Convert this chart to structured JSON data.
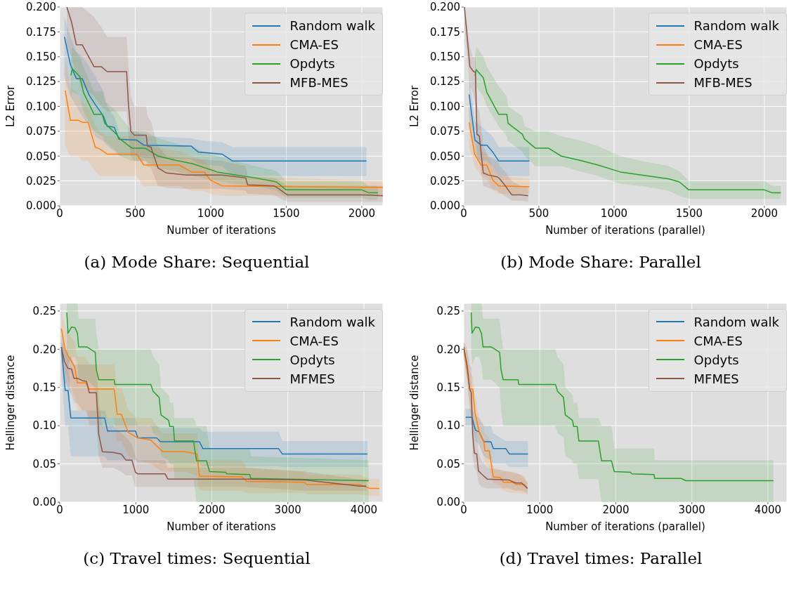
{
  "chart_data": [
    {
      "type": "line",
      "title": "(a) Mode Share: Sequential",
      "xlabel": "Number of iterations",
      "ylabel": "L2 Error",
      "grid": true,
      "legend": "top right",
      "xlim": [
        0,
        2140
      ],
      "xticks": [
        0,
        500,
        1000,
        1500,
        2000
      ],
      "ylim": [
        0,
        0.2
      ],
      "yticks": [
        {
          "value": 0,
          "label": "0.000"
        },
        {
          "value": 0.025,
          "label": "0.025"
        },
        {
          "value": 0.05,
          "label": "0.050"
        },
        {
          "value": 0.075,
          "label": "0.075"
        },
        {
          "value": 0.1,
          "label": "0.100"
        },
        {
          "value": 0.125,
          "label": "0.125"
        },
        {
          "value": 0.15,
          "label": "0.150"
        },
        {
          "value": 0.175,
          "label": "0.175"
        },
        {
          "value": 0.2,
          "label": "0.200"
        }
      ],
      "series": [
        {
          "name": "Random walk",
          "color": "#1f77b4",
          "x": [
            31,
            71,
            110,
            149,
            196,
            235,
            290,
            314,
            361,
            392,
            510,
            557,
            871,
            918,
            1075,
            1145,
            2031
          ],
          "values": [
            0.17,
            0.142,
            0.128,
            0.128,
            0.111,
            0.102,
            0.09,
            0.08,
            0.079,
            0.067,
            0.066,
            0.061,
            0.06,
            0.054,
            0.052,
            0.045,
            0.045
          ],
          "lower": [
            0.13,
            0.11,
            0.1,
            0.09,
            0.08,
            0.07,
            0.065,
            0.06,
            0.055,
            0.05,
            0.05,
            0.048,
            0.047,
            0.042,
            0.04,
            0.03,
            0.03
          ],
          "upper": [
            0.19,
            0.17,
            0.155,
            0.15,
            0.14,
            0.13,
            0.115,
            0.1,
            0.09,
            0.075,
            0.075,
            0.07,
            0.068,
            0.066,
            0.064,
            0.059,
            0.059
          ]
        },
        {
          "name": "CMA-ES",
          "color": "#ff7f0e",
          "x": [
            36,
            71,
            125,
            149,
            188,
            235,
            267,
            314,
            510,
            557,
            792,
            871,
            957,
            996,
            1075,
            2140
          ],
          "values": [
            0.116,
            0.086,
            0.086,
            0.084,
            0.084,
            0.059,
            0.057,
            0.052,
            0.052,
            0.041,
            0.041,
            0.034,
            0.034,
            0.026,
            0.02,
            0.0185
          ],
          "lower": [
            0.06,
            0.05,
            0.05,
            0.045,
            0.045,
            0.035,
            0.03,
            0.03,
            0.03,
            0.02,
            0.02,
            0.015,
            0.015,
            0.012,
            0.01,
            0.01
          ],
          "upper": [
            0.15,
            0.12,
            0.11,
            0.105,
            0.1,
            0.08,
            0.075,
            0.07,
            0.07,
            0.06,
            0.055,
            0.05,
            0.045,
            0.04,
            0.03,
            0.025
          ]
        },
        {
          "name": "Opdyts",
          "color": "#2ca02c",
          "x": [
            74,
            83,
            133,
            157,
            227,
            282,
            298,
            376,
            400,
            478,
            565,
            651,
            761,
            886,
            1043,
            1169,
            1294,
            1435,
            1498,
            2000,
            2047,
            2107
          ],
          "values": [
            0.131,
            0.138,
            0.13,
            0.114,
            0.092,
            0.092,
            0.083,
            0.072,
            0.067,
            0.058,
            0.058,
            0.05,
            0.046,
            0.042,
            0.034,
            0.031,
            0.028,
            0.024,
            0.016,
            0.016,
            0.013,
            0.013
          ],
          "lower": [
            0.11,
            0.115,
            0.11,
            0.095,
            0.075,
            0.07,
            0.065,
            0.055,
            0.05,
            0.045,
            0.045,
            0.038,
            0.035,
            0.03,
            0.025,
            0.022,
            0.02,
            0.015,
            0.008,
            0.008,
            0.006,
            0.006
          ],
          "upper": [
            0.15,
            0.16,
            0.15,
            0.14,
            0.115,
            0.115,
            0.105,
            0.095,
            0.09,
            0.075,
            0.075,
            0.068,
            0.063,
            0.058,
            0.05,
            0.045,
            0.04,
            0.035,
            0.025,
            0.025,
            0.02,
            0.02
          ]
        },
        {
          "name": "MFB-MES",
          "color": "#8c564b",
          "x": [
            47,
            78,
            110,
            149,
            227,
            275,
            314,
            443,
            455,
            471,
            494,
            573,
            580,
            604,
            651,
            706,
            839,
            1075,
            1231,
            1244,
            1420,
            1451,
            1506,
            2016,
            2140
          ],
          "values": [
            0.2,
            0.185,
            0.162,
            0.162,
            0.14,
            0.14,
            0.135,
            0.135,
            0.102,
            0.075,
            0.071,
            0.071,
            0.06,
            0.059,
            0.038,
            0.033,
            0.031,
            0.031,
            0.028,
            0.021,
            0.02,
            0.017,
            0.011,
            0.011,
            0.01
          ],
          "lower": [
            0.16,
            0.15,
            0.13,
            0.12,
            0.11,
            0.1,
            0.095,
            0.095,
            0.07,
            0.05,
            0.045,
            0.045,
            0.04,
            0.038,
            0.02,
            0.018,
            0.017,
            0.017,
            0.015,
            0.012,
            0.011,
            0.008,
            0.004,
            0.004,
            0.004
          ],
          "upper": [
            0.2,
            0.2,
            0.2,
            0.2,
            0.19,
            0.18,
            0.17,
            0.17,
            0.14,
            0.11,
            0.1,
            0.1,
            0.09,
            0.085,
            0.06,
            0.05,
            0.048,
            0.045,
            0.04,
            0.03,
            0.028,
            0.026,
            0.02,
            0.02,
            0.02
          ]
        }
      ]
    },
    {
      "type": "line",
      "title": "(b) Mode Share: Parallel",
      "xlabel": "Number of iterations (parallel)",
      "ylabel": "L2 Error",
      "grid": true,
      "legend": "top right",
      "xlim": [
        0,
        2150
      ],
      "xticks": [
        0,
        500,
        1000,
        1500,
        2000
      ],
      "ylim": [
        0,
        0.2
      ],
      "yticks": [
        {
          "value": 0,
          "label": "0.000"
        },
        {
          "value": 0.025,
          "label": "0.025"
        },
        {
          "value": 0.05,
          "label": "0.050"
        },
        {
          "value": 0.075,
          "label": "0.075"
        },
        {
          "value": 0.1,
          "label": "0.100"
        },
        {
          "value": 0.125,
          "label": "0.125"
        },
        {
          "value": 0.15,
          "label": "0.150"
        },
        {
          "value": 0.175,
          "label": "0.175"
        },
        {
          "value": 0.2,
          "label": "0.200"
        }
      ],
      "series": [
        {
          "name": "Random walk",
          "color": "#1f77b4",
          "x": [
            36,
            75,
            115,
            154,
            193,
            233,
            437
          ],
          "values": [
            0.112,
            0.066,
            0.061,
            0.061,
            0.054,
            0.045,
            0.045
          ],
          "lower": [
            0.09,
            0.05,
            0.045,
            0.045,
            0.04,
            0.03,
            0.03
          ],
          "upper": [
            0.13,
            0.085,
            0.08,
            0.075,
            0.07,
            0.059,
            0.059
          ]
        },
        {
          "name": "CMA-ES",
          "color": "#ff7f0e",
          "x": [
            36,
            72,
            115,
            154,
            193,
            233,
            437
          ],
          "values": [
            0.084,
            0.052,
            0.041,
            0.041,
            0.026,
            0.02,
            0.019
          ],
          "lower": [
            0.06,
            0.04,
            0.03,
            0.028,
            0.016,
            0.012,
            0.012
          ],
          "upper": [
            0.1,
            0.07,
            0.055,
            0.052,
            0.04,
            0.03,
            0.027
          ]
        },
        {
          "name": "Opdyts",
          "color": "#2ca02c",
          "x": [
            75,
            83,
            130,
            154,
            233,
            287,
            295,
            390,
            405,
            476,
            563,
            649,
            767,
            893,
            1042,
            1183,
            1364,
            1434,
            1497,
            2000,
            2052,
            2110
          ],
          "values": [
            0.131,
            0.137,
            0.129,
            0.114,
            0.092,
            0.092,
            0.083,
            0.072,
            0.067,
            0.058,
            0.058,
            0.05,
            0.046,
            0.041,
            0.034,
            0.031,
            0.027,
            0.024,
            0.016,
            0.016,
            0.013,
            0.013
          ],
          "lower": [
            0.115,
            0.12,
            0.11,
            0.1,
            0.08,
            0.07,
            0.065,
            0.055,
            0.05,
            0.04,
            0.04,
            0.04,
            0.035,
            0.03,
            0.022,
            0.02,
            0.015,
            0.01,
            0.007,
            0.007,
            0.007,
            0.007
          ],
          "upper": [
            0.15,
            0.16,
            0.15,
            0.14,
            0.12,
            0.11,
            0.1,
            0.09,
            0.08,
            0.075,
            0.075,
            0.07,
            0.066,
            0.06,
            0.05,
            0.045,
            0.04,
            0.035,
            0.025,
            0.025,
            0.02,
            0.02
          ]
        },
        {
          "name": "MFB-MES",
          "color": "#8c564b",
          "x": [
            5,
            41,
            60,
            78,
            88,
            104,
            130,
            162,
            225,
            240,
            272,
            319,
            382,
            429
          ],
          "values": [
            0.2,
            0.14,
            0.136,
            0.134,
            0.072,
            0.07,
            0.033,
            0.031,
            0.029,
            0.027,
            0.021,
            0.011,
            0.011,
            0.01
          ],
          "lower": [
            0.18,
            0.12,
            0.115,
            0.1,
            0.05,
            0.045,
            0.02,
            0.018,
            0.015,
            0.013,
            0.01,
            0.005,
            0.005,
            0.004
          ],
          "upper": [
            0.2,
            0.16,
            0.15,
            0.15,
            0.1,
            0.095,
            0.06,
            0.05,
            0.045,
            0.04,
            0.035,
            0.025,
            0.02,
            0.02
          ]
        }
      ]
    },
    {
      "type": "line",
      "title": "(c) Travel times: Sequential",
      "xlabel": "Number of iterations",
      "ylabel": "Hellinger distance",
      "grid": true,
      "legend": "top right",
      "xlim": [
        0,
        4250
      ],
      "xticks": [
        0,
        1000,
        2000,
        3000,
        4000
      ],
      "ylim": [
        0,
        0.26
      ],
      "yticks": [
        {
          "value": 0,
          "label": "0.00"
        },
        {
          "value": 0.05,
          "label": "0.05"
        },
        {
          "value": 0.1,
          "label": "0.10"
        },
        {
          "value": 0.15,
          "label": "0.15"
        },
        {
          "value": 0.2,
          "label": "0.20"
        },
        {
          "value": 0.25,
          "label": "0.25"
        }
      ],
      "series": [
        {
          "name": "Random walk",
          "color": "#1f77b4",
          "x": [
            22,
            72,
            109,
            146,
            591,
            629,
            996,
            1027,
            1276,
            1323,
            1837,
            1883,
            2879,
            2926,
            4047
          ],
          "values": [
            0.203,
            0.146,
            0.146,
            0.11,
            0.11,
            0.093,
            0.093,
            0.084,
            0.084,
            0.079,
            0.079,
            0.07,
            0.07,
            0.063,
            0.063
          ],
          "lower": [
            0.17,
            0.1,
            0.1,
            0.06,
            0.06,
            0.055,
            0.055,
            0.052,
            0.052,
            0.05,
            0.05,
            0.047,
            0.047,
            0.046,
            0.046
          ],
          "upper": [
            0.22,
            0.2,
            0.2,
            0.12,
            0.12,
            0.11,
            0.11,
            0.1,
            0.1,
            0.097,
            0.097,
            0.092,
            0.092,
            0.08,
            0.08
          ]
        },
        {
          "name": "CMA-ES",
          "color": "#ff7f0e",
          "x": [
            22,
            72,
            109,
            196,
            233,
            342,
            389,
            716,
            756,
            809,
            903,
            1027,
            1198,
            1354,
            1650,
            1806,
            1837,
            2397,
            2459,
            3222,
            3247,
            3938,
            4078,
            4202
          ],
          "values": [
            0.227,
            0.199,
            0.192,
            0.177,
            0.156,
            0.156,
            0.148,
            0.148,
            0.115,
            0.115,
            0.091,
            0.084,
            0.081,
            0.066,
            0.066,
            0.063,
            0.034,
            0.033,
            0.027,
            0.026,
            0.023,
            0.023,
            0.018,
            0.018
          ],
          "lower": [
            0.2,
            0.17,
            0.16,
            0.14,
            0.12,
            0.12,
            0.11,
            0.11,
            0.08,
            0.08,
            0.06,
            0.055,
            0.05,
            0.04,
            0.04,
            0.035,
            0.015,
            0.015,
            0.012,
            0.012,
            0.01,
            0.01,
            0.008,
            0.008
          ],
          "upper": [
            0.25,
            0.23,
            0.22,
            0.21,
            0.19,
            0.19,
            0.18,
            0.18,
            0.15,
            0.15,
            0.12,
            0.11,
            0.11,
            0.09,
            0.09,
            0.09,
            0.055,
            0.055,
            0.045,
            0.04,
            0.036,
            0.036,
            0.03,
            0.03
          ]
        },
        {
          "name": "Opdyts",
          "color": "#2ca02c",
          "x": [
            93,
            109,
            156,
            202,
            233,
            249,
            358,
            467,
            482,
            514,
            716,
            725,
            1198,
            1229,
            1307,
            1332,
            1432,
            1447,
            1494,
            1510,
            1759,
            1799,
            1930,
            1971,
            2179,
            2201,
            2500,
            2512,
            4062
          ],
          "values": [
            0.248,
            0.221,
            0.229,
            0.228,
            0.221,
            0.203,
            0.203,
            0.196,
            0.173,
            0.16,
            0.16,
            0.154,
            0.154,
            0.145,
            0.137,
            0.114,
            0.107,
            0.099,
            0.099,
            0.08,
            0.08,
            0.054,
            0.054,
            0.04,
            0.039,
            0.037,
            0.036,
            0.031,
            0.028
          ],
          "lower": [
            0.2,
            0.18,
            0.19,
            0.19,
            0.18,
            0.16,
            0.16,
            0.15,
            0.12,
            0.1,
            0.1,
            0.1,
            0.1,
            0.09,
            0.085,
            0.06,
            0.055,
            0.05,
            0.05,
            0.03,
            0.03,
            0,
            0,
            0,
            0,
            0,
            0,
            0,
            0
          ],
          "upper": [
            0.26,
            0.26,
            0.26,
            0.26,
            0.26,
            0.24,
            0.24,
            0.24,
            0.22,
            0.2,
            0.2,
            0.2,
            0.2,
            0.19,
            0.18,
            0.15,
            0.14,
            0.13,
            0.13,
            0.11,
            0.11,
            0.1,
            0.1,
            0.07,
            0.07,
            0.07,
            0.07,
            0.06,
            0.055
          ]
        },
        {
          "name": "MFMES",
          "color": "#8c564b",
          "x": [
            22,
            62,
            109,
            156,
            187,
            233,
            296,
            352,
            389,
            482,
            514,
            560,
            700,
            809,
            871,
            949,
            996,
            1027,
            1385,
            1423,
            2444,
            3222,
            3938,
            4031
          ],
          "values": [
            0.203,
            0.184,
            0.175,
            0.174,
            0.162,
            0.162,
            0.159,
            0.158,
            0.143,
            0.143,
            0.088,
            0.066,
            0.065,
            0.063,
            0.055,
            0.055,
            0.039,
            0.037,
            0.037,
            0.03,
            0.03,
            0.029,
            0.021,
            0.021
          ],
          "lower": [
            0.19,
            0.16,
            0.15,
            0.14,
            0.13,
            0.13,
            0.12,
            0.12,
            0.1,
            0.1,
            0.06,
            0.045,
            0.045,
            0.04,
            0.035,
            0.035,
            0.02,
            0.02,
            0.02,
            0.02,
            0.02,
            0.015,
            0.015,
            0.015
          ],
          "upper": [
            0.21,
            0.2,
            0.19,
            0.19,
            0.18,
            0.18,
            0.18,
            0.18,
            0.18,
            0.18,
            0.13,
            0.1,
            0.1,
            0.09,
            0.085,
            0.075,
            0.06,
            0.055,
            0.055,
            0.045,
            0.045,
            0.04,
            0.03,
            0.03
          ]
        }
      ]
    },
    {
      "type": "line",
      "title": "(d) Travel times: Parallel",
      "xlabel": "Number of iterations (parallel)",
      "ylabel": "Hellinger distance",
      "grid": true,
      "legend": "top right",
      "xlim": [
        0,
        4250
      ],
      "xticks": [
        0,
        1000,
        2000,
        3000,
        4000
      ],
      "ylim": [
        0,
        0.26
      ],
      "yticks": [
        {
          "value": 0,
          "label": "0.00"
        },
        {
          "value": 0.05,
          "label": "0.05"
        },
        {
          "value": 0.1,
          "label": "0.10"
        },
        {
          "value": 0.15,
          "label": "0.15"
        },
        {
          "value": 0.2,
          "label": "0.20"
        },
        {
          "value": 0.25,
          "label": "0.25"
        }
      ],
      "series": [
        {
          "name": "Random walk",
          "color": "#1f77b4",
          "x": [
            25,
            109,
            155,
            202,
            264,
            357,
            389,
            553,
            600,
            845
          ],
          "values": [
            0.111,
            0.111,
            0.094,
            0.092,
            0.079,
            0.079,
            0.07,
            0.07,
            0.063,
            0.063
          ],
          "lower": [
            0.1,
            0.1,
            0.08,
            0.075,
            0.06,
            0.055,
            0.05,
            0.05,
            0.046,
            0.046
          ],
          "upper": [
            0.122,
            0.122,
            0.113,
            0.11,
            0.1,
            0.1,
            0.09,
            0.08,
            0.08,
            0.08
          ]
        },
        {
          "name": "CMA-ES",
          "color": "#ff7f0e",
          "x": [
            0,
            37,
            78,
            118,
            149,
            202,
            264,
            280,
            336,
            389,
            482,
            522,
            637,
            690,
            793,
            839
          ],
          "values": [
            0.2,
            0.179,
            0.148,
            0.148,
            0.117,
            0.092,
            0.079,
            0.067,
            0.067,
            0.033,
            0.032,
            0.026,
            0.026,
            0.023,
            0.023,
            0.018
          ],
          "lower": [
            0.19,
            0.16,
            0.13,
            0.12,
            0.1,
            0.075,
            0.06,
            0.05,
            0.045,
            0.025,
            0.022,
            0.015,
            0.012,
            0.012,
            0.011,
            0.01
          ],
          "upper": [
            0.21,
            0.2,
            0.17,
            0.165,
            0.14,
            0.11,
            0.1,
            0.09,
            0.085,
            0.045,
            0.042,
            0.04,
            0.04,
            0.038,
            0.035,
            0.025
          ]
        },
        {
          "name": "Opdyts",
          "color": "#2ca02c",
          "x": [
            99,
            109,
            155,
            202,
            233,
            255,
            364,
            472,
            491,
            519,
            715,
            724,
            1206,
            1234,
            1312,
            1336,
            1430,
            1445,
            1492,
            1514,
            1771,
            1812,
            1943,
            1980,
            2191,
            2213,
            2502,
            2511,
            2859,
            2921,
            4072
          ],
          "values": [
            0.248,
            0.221,
            0.229,
            0.228,
            0.221,
            0.203,
            0.203,
            0.196,
            0.173,
            0.16,
            0.16,
            0.154,
            0.154,
            0.145,
            0.137,
            0.114,
            0.107,
            0.099,
            0.099,
            0.08,
            0.08,
            0.054,
            0.054,
            0.04,
            0.039,
            0.037,
            0.036,
            0.031,
            0.031,
            0.028,
            0.028
          ],
          "lower": [
            0.2,
            0.18,
            0.19,
            0.19,
            0.18,
            0.16,
            0.16,
            0.15,
            0.12,
            0.1,
            0.1,
            0.1,
            0.1,
            0.09,
            0.085,
            0.06,
            0.055,
            0.05,
            0.05,
            0.03,
            0.03,
            0,
            0,
            0,
            0,
            0,
            0,
            0,
            0,
            0,
            0
          ],
          "upper": [
            0.26,
            0.26,
            0.26,
            0.26,
            0.26,
            0.24,
            0.24,
            0.24,
            0.22,
            0.2,
            0.2,
            0.2,
            0.2,
            0.19,
            0.18,
            0.15,
            0.14,
            0.13,
            0.13,
            0.11,
            0.11,
            0.1,
            0.1,
            0.07,
            0.07,
            0.07,
            0.07,
            0.055,
            0.055,
            0.055,
            0.055
          ]
        },
        {
          "name": "MFMES",
          "color": "#8c564b",
          "x": [
            0,
            47,
            78,
            99,
            118,
            140,
            171,
            193,
            233,
            311,
            591,
            684,
            762,
            839
          ],
          "values": [
            0.203,
            0.177,
            0.148,
            0.143,
            0.089,
            0.064,
            0.063,
            0.041,
            0.037,
            0.03,
            0.029,
            0.025,
            0.025,
            0.018
          ],
          "lower": [
            0.19,
            0.16,
            0.12,
            0.11,
            0.06,
            0.045,
            0.04,
            0.025,
            0.02,
            0.018,
            0.018,
            0.015,
            0.015,
            0.012
          ],
          "upper": [
            0.21,
            0.2,
            0.18,
            0.175,
            0.13,
            0.1,
            0.095,
            0.065,
            0.055,
            0.045,
            0.04,
            0.038,
            0.035,
            0.025
          ]
        }
      ]
    }
  ]
}
